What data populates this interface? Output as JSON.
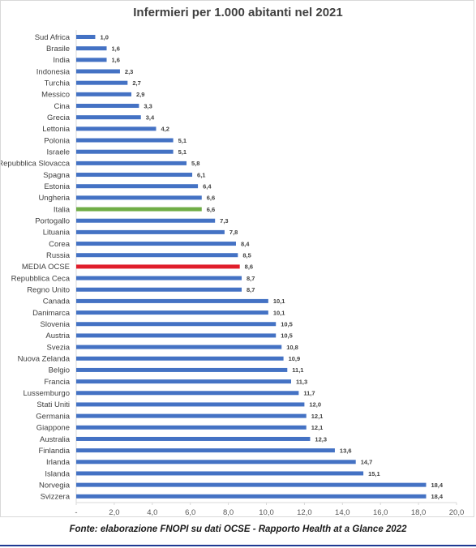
{
  "chart_data": {
    "type": "bar",
    "orientation": "horizontal",
    "title": "Infermieri per 1.000 abitanti nel 2021",
    "xlim": [
      0,
      20
    ],
    "ticks": [
      "-",
      "2,0",
      "4,0",
      "6,0",
      "8,0",
      "10,0",
      "12,0",
      "14,0",
      "16,0",
      "18,0",
      "20,0"
    ],
    "grid": false,
    "colors": {
      "default": "#4472c4",
      "italia": "#70ad47",
      "media_ocse": "#e01e2b"
    },
    "categories": [
      "Sud Africa",
      "Brasile",
      "India",
      "Indonesia",
      "Turchia",
      "Messico",
      "Cina",
      "Grecia",
      "Lettonia",
      "Polonia",
      "Israele",
      "Repubblica Slovacca",
      "Spagna",
      "Estonia",
      "Ungheria",
      "Italia",
      "Portogallo",
      "Lituania",
      "Corea",
      "Russia",
      "MEDIA OCSE",
      "Repubblica Ceca",
      "Regno Unito",
      "Canada",
      "Danimarca",
      "Slovenia",
      "Austria",
      "Svezia",
      "Nuova Zelanda",
      "Belgio",
      "Francia",
      "Lussemburgo",
      "Stati Uniti",
      "Germania",
      "Giappone",
      "Australia",
      "Finlandia",
      "Irlanda",
      "Islanda",
      "Norvegia",
      "Svizzera"
    ],
    "values": [
      1.0,
      1.6,
      1.6,
      2.3,
      2.7,
      2.9,
      3.3,
      3.4,
      4.2,
      5.1,
      5.1,
      5.8,
      6.1,
      6.4,
      6.6,
      6.6,
      7.3,
      7.8,
      8.4,
      8.5,
      8.6,
      8.7,
      8.7,
      10.1,
      10.1,
      10.5,
      10.5,
      10.8,
      10.9,
      11.1,
      11.3,
      11.7,
      12.0,
      12.1,
      12.1,
      12.3,
      13.6,
      14.7,
      15.1,
      18.4,
      18.4
    ],
    "value_labels": [
      "1,0",
      "1,6",
      "1,6",
      "2,3",
      "2,7",
      "2,9",
      "3,3",
      "3,4",
      "4,2",
      "5,1",
      "5,1",
      "5,8",
      "6,1",
      "6,4",
      "6,6",
      "6,6",
      "7,3",
      "7,8",
      "8,4",
      "8,5",
      "8,6",
      "8,7",
      "8,7",
      "10,1",
      "10,1",
      "10,5",
      "10,5",
      "10,8",
      "10,9",
      "11,1",
      "11,3",
      "11,7",
      "12,0",
      "12,1",
      "12,1",
      "12,3",
      "13,6",
      "14,7",
      "15,1",
      "18,4",
      "18,4"
    ],
    "highlight": {
      "Italia": "italia",
      "MEDIA OCSE": "media_ocse"
    }
  },
  "source": "Fonte: elaborazione FNOPI su dati OCSE - Rapporto Health at a Glance 2022"
}
